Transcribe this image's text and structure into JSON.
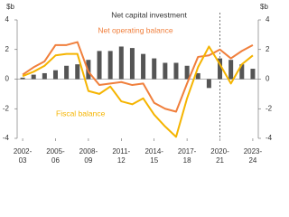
{
  "chart_data": {
    "type": "combo",
    "y_label": "$b",
    "categories": [
      "2002-03",
      null,
      null,
      "2005-06",
      null,
      null,
      "2008-09",
      null,
      null,
      "2011-12",
      null,
      null,
      "2014-15",
      null,
      null,
      "2017-18",
      null,
      null,
      "2020-21",
      null,
      null,
      "2023-24"
    ],
    "series": [
      {
        "name": "Net capital investment",
        "type": "bar",
        "color": "#555555",
        "values": [
          0.1,
          0.3,
          0.4,
          0.6,
          0.9,
          1.0,
          1.3,
          1.9,
          1.9,
          2.2,
          2.1,
          1.7,
          1.4,
          1.1,
          1.1,
          0.9,
          0.4,
          -0.6,
          1.4,
          1.3,
          1.0,
          0.7
        ]
      },
      {
        "name": "Net operating balance",
        "type": "line",
        "color": "#f07f3c",
        "values": [
          0.3,
          0.8,
          1.2,
          2.3,
          2.3,
          2.5,
          0.5,
          -0.4,
          -0.3,
          -0.2,
          -0.4,
          -0.3,
          -1.6,
          -2.0,
          -2.2,
          -0.3,
          1.5,
          1.6,
          2.0,
          1.4,
          1.9,
          2.3
        ]
      },
      {
        "name": "Fiscal balance",
        "type": "line",
        "color": "#f5b400",
        "values": [
          0.2,
          0.5,
          0.9,
          1.6,
          1.7,
          1.7,
          -0.8,
          -1.0,
          -0.5,
          -1.5,
          -1.7,
          -1.3,
          -2.4,
          -3.2,
          -3.9,
          -1.3,
          0.8,
          2.2,
          1.0,
          -0.3,
          1.0,
          1.6
        ]
      }
    ],
    "ylim": [
      -4,
      4
    ],
    "yticks": [
      -4,
      -2,
      0,
      2,
      4
    ],
    "y2lim": [
      -4,
      4
    ],
    "y2ticks": [
      -4,
      -2,
      0,
      2,
      4
    ]
  }
}
